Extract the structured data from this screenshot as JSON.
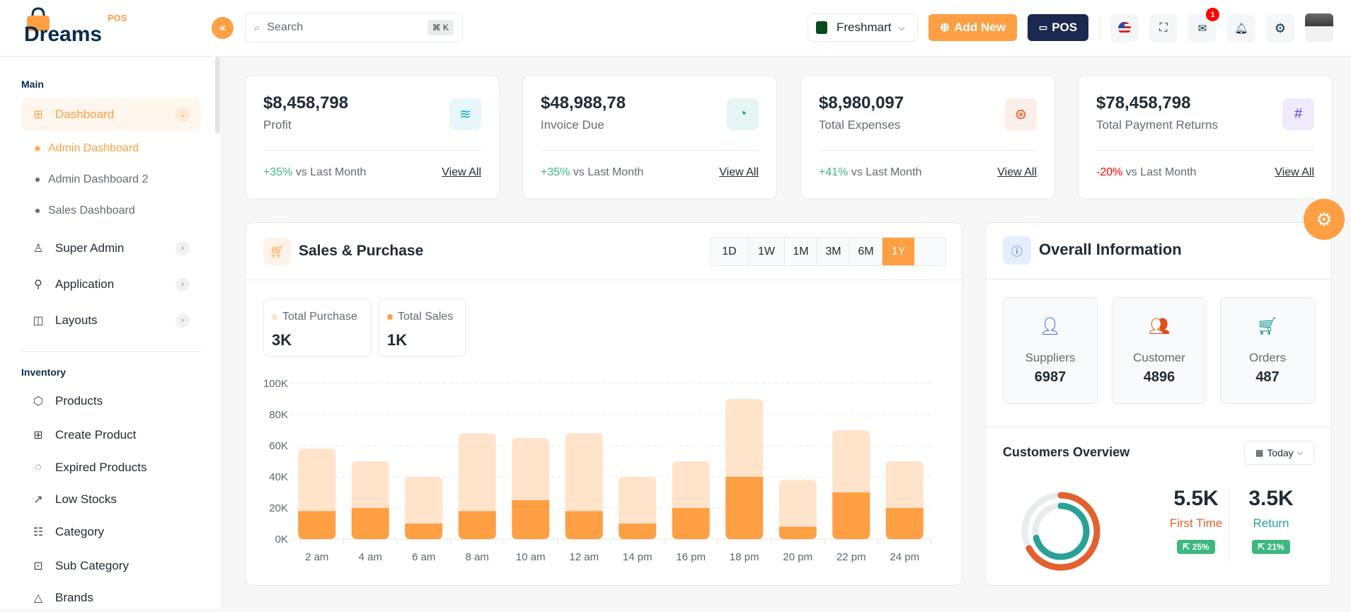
{
  "header": {
    "logo_text": "Dreams",
    "logo_sub": "POS",
    "search_placeholder": "Search",
    "search_shortcut": "⌘ K",
    "store": "Freshmart",
    "add_new": "Add New",
    "pos": "POS",
    "mail_count": "1"
  },
  "sidebar": {
    "main_label": "Main",
    "dashboard": "Dashboard",
    "sub_items": [
      "Admin Dashboard",
      "Admin Dashboard 2",
      "Sales Dashboard"
    ],
    "main_items": [
      "Super Admin",
      "Application",
      "Layouts"
    ],
    "inventory_label": "Inventory",
    "inventory_items": [
      "Products",
      "Create Product",
      "Expired Products",
      "Low Stocks",
      "Category",
      "Sub Category",
      "Brands"
    ]
  },
  "stats": [
    {
      "value": "$8,458,798",
      "label": "Profit",
      "change": "+35%",
      "change_suffix": " vs Last Month",
      "link": "View All",
      "icon": "layers-icon",
      "color": "#0DA6D5",
      "bg": "#E7F7FC",
      "change_color": "#3EB780"
    },
    {
      "value": "$48,988,78",
      "label": "Invoice Due",
      "change": "+35%",
      "change_suffix": " vs Last Month",
      "link": "View All",
      "icon": "chart-pie-icon",
      "color": "#1B9E8E",
      "bg": "#E6F5F3",
      "change_color": "#3EB780"
    },
    {
      "value": "$8,980,097",
      "label": "Total Expenses",
      "change": "+41%",
      "change_suffix": " vs Last Month",
      "link": "View All",
      "icon": "lifebuoy-icon",
      "color": "#E04F16",
      "bg": "#FCEEE8",
      "change_color": "#3EB780"
    },
    {
      "value": "$78,458,798",
      "label": "Total Payment Returns",
      "change": "-20%",
      "change_suffix": " vs Last Month",
      "link": "View All",
      "icon": "hash-icon",
      "color": "#6938EF",
      "bg": "#EFEBFD",
      "change_color": "#FF0000"
    }
  ],
  "sales": {
    "title": "Sales & Purchase",
    "tabs": [
      "1D",
      "1W",
      "1M",
      "3M",
      "6M",
      "1Y"
    ],
    "active_tab": "1Y",
    "legend": [
      {
        "label": "Total Purchase",
        "value": "3K",
        "color": "#FFE3CB"
      },
      {
        "label": "Total Sales",
        "value": "1K",
        "color": "#FE9F43"
      }
    ]
  },
  "chart_data": {
    "type": "bar",
    "stacked": true,
    "categories": [
      "2 am",
      "4 am",
      "6 am",
      "8 am",
      "10 am",
      "12 am",
      "14 pm",
      "16 pm",
      "18 pm",
      "20 pm",
      "22 pm",
      "24 pm"
    ],
    "series": [
      {
        "name": "Total Sales",
        "color": "#FE9F43",
        "values": [
          18,
          20,
          10,
          18,
          25,
          18,
          10,
          20,
          40,
          8,
          30,
          20
        ]
      },
      {
        "name": "Total Purchase",
        "color": "#FFE3CB",
        "values": [
          40,
          30,
          30,
          50,
          40,
          50,
          30,
          30,
          50,
          30,
          40,
          30
        ]
      }
    ],
    "yticks": [
      "0K",
      "20K",
      "40K",
      "60K",
      "80K",
      "100K"
    ],
    "ylim": [
      0,
      100
    ],
    "unit": "K",
    "grid": true
  },
  "overall": {
    "title": "Overall Information",
    "items": [
      {
        "label": "Suppliers",
        "value": "6987",
        "icon": "user-check-icon",
        "color": "#2563EB"
      },
      {
        "label": "Customer",
        "value": "4896",
        "icon": "users-icon",
        "color": "#E04F16"
      },
      {
        "label": "Orders",
        "value": "487",
        "icon": "cart-icon",
        "color": "#0E9384"
      }
    ]
  },
  "customers": {
    "title": "Customers Overview",
    "filter": "Today",
    "first": {
      "value": "5.5K",
      "label": "First Time",
      "badge": "25%",
      "color": "#E2612F"
    },
    "return": {
      "value": "3.5K",
      "label": "Return",
      "badge": "21%",
      "color": "#2AA198"
    }
  }
}
